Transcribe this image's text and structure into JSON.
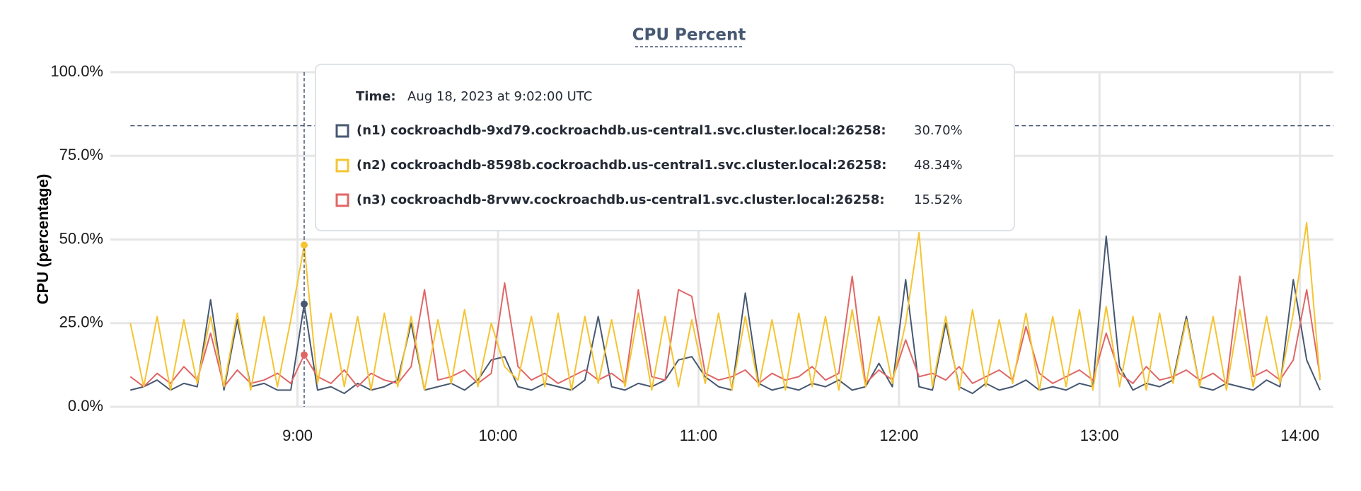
{
  "chart_data": {
    "type": "line",
    "title": "CPU Percent",
    "y_label": "CPU (percentage)",
    "x": [
      "8:10",
      "8:14",
      "8:18",
      "8:22",
      "8:26",
      "8:30",
      "8:34",
      "8:38",
      "8:42",
      "8:46",
      "8:50",
      "8:54",
      "8:58",
      "9:02",
      "9:06",
      "9:10",
      "9:14",
      "9:18",
      "9:22",
      "9:26",
      "9:30",
      "9:34",
      "9:38",
      "9:42",
      "9:46",
      "9:50",
      "9:54",
      "9:58",
      "10:02",
      "10:06",
      "10:10",
      "10:14",
      "10:18",
      "10:22",
      "10:26",
      "10:30",
      "10:34",
      "10:38",
      "10:42",
      "10:46",
      "10:50",
      "10:54",
      "10:58",
      "11:02",
      "11:06",
      "11:10",
      "11:14",
      "11:18",
      "11:22",
      "11:26",
      "11:30",
      "11:34",
      "11:38",
      "11:42",
      "11:46",
      "11:50",
      "11:54",
      "11:58",
      "12:02",
      "12:06",
      "12:10",
      "12:14",
      "12:18",
      "12:22",
      "12:26",
      "12:30",
      "12:34",
      "12:38",
      "12:42",
      "12:46",
      "12:50",
      "12:54",
      "12:58",
      "13:02",
      "13:06",
      "13:10",
      "13:14",
      "13:18",
      "13:22",
      "13:26",
      "13:30",
      "13:34",
      "13:38",
      "13:42",
      "13:46",
      "13:50",
      "13:54",
      "13:58",
      "14:02",
      "14:06"
    ],
    "series": [
      {
        "name": "(n1) cockroachdb-9xd79.cockroachdb.us-central1.svc.cluster.local:26258:",
        "color": "#475872",
        "values": [
          5,
          6,
          8,
          5,
          7,
          6,
          32,
          5,
          26,
          6,
          7,
          5,
          5,
          30.7,
          5,
          6,
          4,
          7,
          5,
          6,
          8,
          25,
          5,
          6,
          7,
          5,
          8,
          14,
          15,
          6,
          5,
          7,
          6,
          5,
          8,
          27,
          6,
          5,
          7,
          6,
          8,
          14,
          15,
          9,
          6,
          5,
          34,
          7,
          5,
          6,
          5,
          7,
          6,
          8,
          5,
          6,
          13,
          6,
          38,
          6,
          5,
          25,
          6,
          4,
          7,
          5,
          6,
          8,
          5,
          6,
          5,
          7,
          6,
          51,
          12,
          5,
          7,
          6,
          8,
          27,
          6,
          5,
          7,
          6,
          5,
          8,
          6,
          38,
          14,
          5
        ]
      },
      {
        "name": "(n2) cockroachdb-8598b.cockroachdb.us-central1.svc.cluster.local:26258:",
        "color": "#f5c431",
        "values": [
          25,
          6,
          27,
          5,
          26,
          7,
          27,
          6,
          28,
          5,
          27,
          6,
          26,
          48.34,
          7,
          28,
          6,
          27,
          5,
          28,
          6,
          27,
          5,
          26,
          7,
          29,
          6,
          25,
          12,
          8,
          27,
          6,
          28,
          5,
          27,
          7,
          26,
          6,
          28,
          5,
          27,
          6,
          26,
          7,
          28,
          5,
          27,
          6,
          26,
          5,
          28,
          6,
          27,
          5,
          29,
          6,
          27,
          7,
          25,
          52,
          6,
          27,
          5,
          29,
          6,
          26,
          7,
          28,
          5,
          27,
          6,
          29,
          5,
          30,
          6,
          27,
          5,
          28,
          7,
          26,
          6,
          27,
          5,
          29,
          6,
          27,
          7,
          28,
          55,
          8
        ]
      },
      {
        "name": "(n3) cockroachdb-8rvwv.cockroachdb.us-central1.svc.cluster.local:26258:",
        "color": "#e06666",
        "values": [
          9,
          6,
          10,
          7,
          12,
          8,
          22,
          6,
          11,
          7,
          8,
          10,
          7,
          15.52,
          9,
          7,
          11,
          6,
          10,
          8,
          7,
          12,
          35,
          8,
          9,
          11,
          7,
          10,
          37,
          12,
          8,
          10,
          7,
          9,
          11,
          8,
          10,
          7,
          35,
          9,
          8,
          35,
          33,
          10,
          8,
          9,
          11,
          7,
          10,
          8,
          9,
          12,
          8,
          10,
          39,
          7,
          11,
          8,
          20,
          9,
          10,
          8,
          12,
          7,
          9,
          11,
          8,
          24,
          10,
          7,
          9,
          11,
          8,
          22,
          10,
          7,
          12,
          8,
          9,
          11,
          8,
          10,
          7,
          39,
          9,
          11,
          8,
          14,
          35,
          9
        ]
      }
    ],
    "xlim": [
      "8:04",
      "14:10"
    ],
    "xticks": [
      "9:00",
      "10:00",
      "11:00",
      "12:00",
      "13:00",
      "14:00"
    ],
    "ylim": [
      0,
      100
    ],
    "yticks": [
      {
        "value": 0,
        "label": "0.0%"
      },
      {
        "value": 25,
        "label": "25.0%"
      },
      {
        "value": 50,
        "label": "50.0%"
      },
      {
        "value": 75,
        "label": "75.0%"
      },
      {
        "value": 100,
        "label": "100.0%"
      }
    ],
    "grid": true,
    "threshold": 84,
    "tooltip": {
      "time_label": "Time:",
      "time": "Aug 18, 2023 at 9:02:00 UTC",
      "x": "9:02",
      "values": [
        30.7,
        48.34,
        15.52
      ],
      "value_labels": [
        "30.70%",
        "48.34%",
        "15.52%"
      ]
    }
  }
}
